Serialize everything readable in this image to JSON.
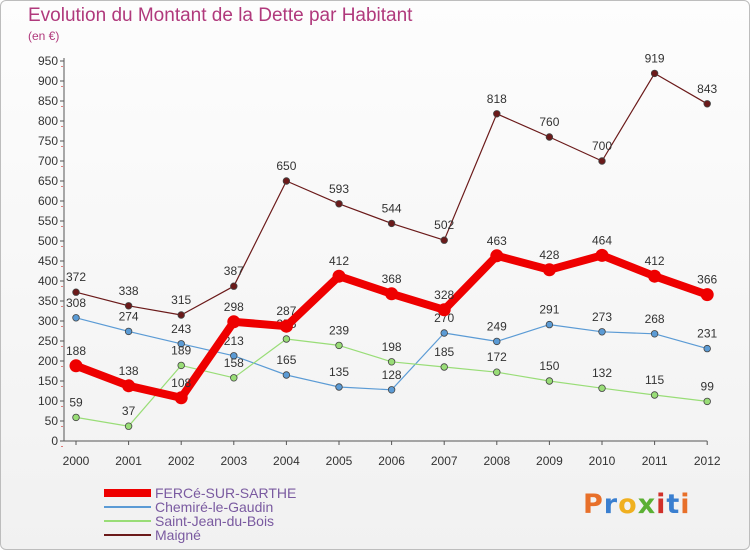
{
  "header": {
    "title": "Evolution du Montant de la Dette par Habitant",
    "subtitle": "(en €)"
  },
  "logo": {
    "text": "Proxiti",
    "colors": [
      "#e8702a",
      "#3a7fd0",
      "#f0b020",
      "#5bb033",
      "#d0302a",
      "#3a7fd0",
      "#e8702a"
    ]
  },
  "colors": {
    "title": "#b0397c",
    "axis": "#333333",
    "grid_hint": "#cc0000"
  },
  "chart_data": {
    "type": "line",
    "title": "Evolution du Montant de la Dette par Habitant",
    "subtitle": "(en €)",
    "x": [
      "2000",
      "2001",
      "2002",
      "2003",
      "2004",
      "2005",
      "2006",
      "2007",
      "2008",
      "2009",
      "2010",
      "2011",
      "2012"
    ],
    "ylim": [
      0,
      950
    ],
    "yticks": [
      0,
      50,
      100,
      150,
      200,
      250,
      300,
      350,
      400,
      450,
      500,
      550,
      600,
      650,
      700,
      750,
      800,
      850,
      900,
      950
    ],
    "legend_position": "bottom-left",
    "series": [
      {
        "name": "Maigné",
        "color": "#6b1a1a",
        "width": 1.2,
        "values": [
          372,
          338,
          315,
          387,
          650,
          593,
          544,
          502,
          818,
          760,
          700,
          919,
          843
        ]
      },
      {
        "name": "Chemiré-le-Gaudin",
        "color": "#5b9bd5",
        "width": 1.2,
        "values": [
          308,
          274,
          243,
          213,
          165,
          135,
          128,
          270,
          249,
          291,
          273,
          268,
          231
        ]
      },
      {
        "name": "Saint-Jean-du-Bois",
        "color": "#99dd77",
        "width": 1.2,
        "values": [
          59,
          37,
          189,
          158,
          255,
          239,
          198,
          185,
          172,
          150,
          132,
          115,
          99
        ]
      },
      {
        "name": "FERCé-SUR-SARTHE",
        "color": "#ee0000",
        "width": 8,
        "values": [
          188,
          138,
          108,
          298,
          287,
          412,
          368,
          328,
          463,
          428,
          464,
          412,
          366
        ]
      }
    ],
    "legend": [
      "FERCé-SUR-SARTHE",
      "Chemiré-le-Gaudin",
      "Saint-Jean-du-Bois",
      "Maigné"
    ]
  }
}
